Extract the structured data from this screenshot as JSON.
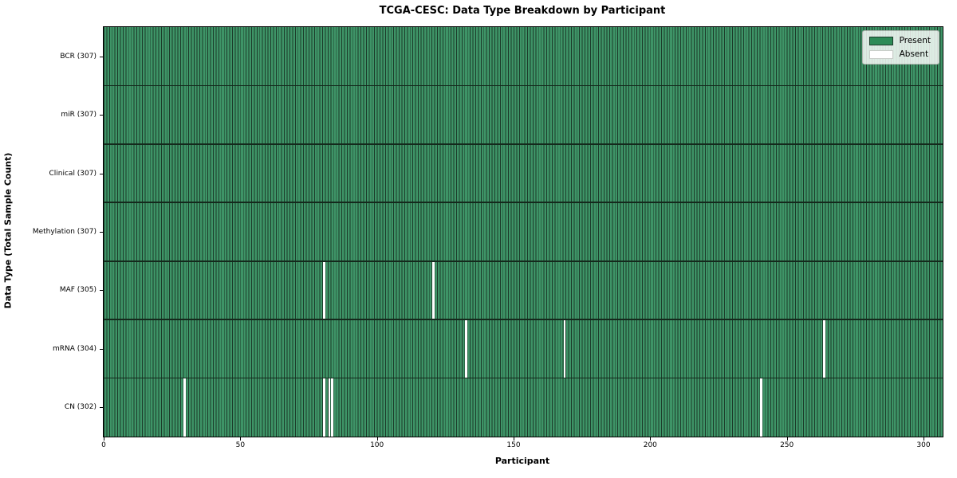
{
  "title": "TCGA-CESC: Data Type Breakdown by Participant",
  "chart_data": {
    "type": "heatmap",
    "title": "TCGA-CESC: Data Type Breakdown by Participant",
    "xlabel": "Participant",
    "ylabel": "Data Type (Total Sample Count)",
    "x_ticks": [
      0,
      50,
      100,
      150,
      200,
      250,
      300
    ],
    "x_range": [
      0,
      307
    ],
    "total_participants": 307,
    "grid": "cell-edges",
    "legend_position": "upper-right",
    "rows": [
      {
        "label": "BCR (307)",
        "data_type": "BCR",
        "count": 307,
        "absent_participants": []
      },
      {
        "label": "miR (307)",
        "data_type": "miR",
        "count": 307,
        "absent_participants": []
      },
      {
        "label": "Clinical (307)",
        "data_type": "Clinical",
        "count": 307,
        "absent_participants": []
      },
      {
        "label": "Methylation (307)",
        "data_type": "Methylation",
        "count": 307,
        "absent_participants": []
      },
      {
        "label": "MAF (305)",
        "data_type": "MAF",
        "count": 305,
        "absent_participants": [
          80,
          120
        ]
      },
      {
        "label": "mRNA (304)",
        "data_type": "mRNA",
        "count": 304,
        "absent_participants": [
          132,
          168,
          263
        ]
      },
      {
        "label": "CN (302)",
        "data_type": "CN",
        "count": 302,
        "absent_participants": [
          29,
          80,
          82,
          83,
          240
        ]
      }
    ],
    "legend": [
      {
        "label": "Present",
        "color": "#2e8b57"
      },
      {
        "label": "Absent",
        "color": "#ffffff"
      }
    ],
    "colors": {
      "present_fill": "#3e9467",
      "cell_edge": "#1c3b2a",
      "absent_fill": "#ffffff",
      "row_separator": "#14291c",
      "plot_border": "#000000"
    }
  }
}
